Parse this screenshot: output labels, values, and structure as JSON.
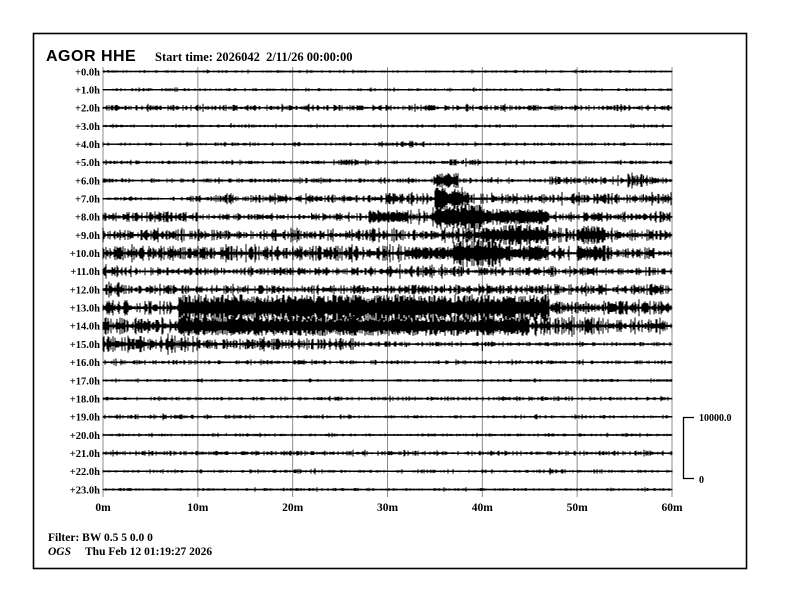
{
  "header": {
    "title": "AGOR HHE",
    "start_time": "Start time: 2026042  2/11/26 00:00:00"
  },
  "scale_bar": {
    "max": "10000.0",
    "min": "0"
  },
  "footer": {
    "filter": "Filter: BW 0.5 5 0.0 0",
    "agency": "OGS",
    "timestamp": "Thu Feb 12 01:19:27 2026"
  },
  "chart_data": {
    "type": "line",
    "subtype": "helicorder-seismogram",
    "station": "AGOR",
    "channel": "HHE",
    "title": "AGOR HHE",
    "start_time": "2026042 2/11/26 00:00:00",
    "minutes_per_line": 60,
    "num_lines": 24,
    "grid": true,
    "colors": {
      "trace": "#000000",
      "grid": "#8c8c8c",
      "background": "#ffffff"
    },
    "x_axis": {
      "ticks": [
        "0m",
        "10m",
        "20m",
        "30m",
        "40m",
        "50m",
        "60m"
      ],
      "range_minutes": [
        0,
        60
      ]
    },
    "y_axis": {
      "labels": [
        "+0.0h",
        "+1.0h",
        "+2.0h",
        "+3.0h",
        "+4.0h",
        "+5.0h",
        "+6.0h",
        "+7.0h",
        "+8.0h",
        "+9.0h",
        "+10.0h",
        "+11.0h",
        "+12.0h",
        "+13.0h",
        "+14.0h",
        "+15.0h",
        "+16.0h",
        "+17.0h",
        "+18.0h",
        "+19.0h",
        "+20.0h",
        "+21.0h",
        "+22.0h",
        "+23.0h"
      ]
    },
    "amplitude_scale": {
      "max": 10000.0,
      "min": 0
    },
    "envelope_units": "segments are [start_min, end_min, half_amplitude_px]; spikes are [minute, peak_px, negative=downward]",
    "traces": [
      {
        "hour": "+0.0h",
        "segments": [
          [
            0,
            60,
            0.7
          ]
        ],
        "spikes": [
          [
            0.5,
            1.4
          ],
          [
            1.5,
            1.2
          ],
          [
            2.5,
            1.3
          ],
          [
            20,
            1.0
          ],
          [
            33,
            1.0
          ]
        ]
      },
      {
        "hour": "+1.0h",
        "segments": [
          [
            0,
            60,
            0.8
          ]
        ],
        "spikes": [
          [
            5,
            1.4
          ],
          [
            9,
            1.2
          ],
          [
            14,
            1.3
          ],
          [
            19,
            1.2
          ],
          [
            30,
            1.5
          ],
          [
            36,
            1.3
          ],
          [
            44,
            1.5
          ],
          [
            52,
            1.3
          ],
          [
            58,
            1.2
          ]
        ]
      },
      {
        "hour": "+2.0h",
        "segments": [
          [
            0,
            60,
            1.6
          ]
        ],
        "spikes": [
          [
            50,
            2.2
          ]
        ]
      },
      {
        "hour": "+3.0h",
        "segments": [
          [
            0,
            60,
            0.8
          ]
        ],
        "spikes": [
          [
            13.5,
            3.0
          ],
          [
            28,
            1.2
          ],
          [
            45,
            1.1
          ]
        ]
      },
      {
        "hour": "+4.0h",
        "segments": [
          [
            0,
            60,
            0.9
          ],
          [
            29,
            34,
            1.8
          ]
        ],
        "spikes": [
          [
            13,
            1.5
          ],
          [
            33,
            2.2
          ],
          [
            47,
            1.3
          ],
          [
            56,
            1.5
          ]
        ]
      },
      {
        "hour": "+5.0h",
        "segments": [
          [
            0,
            60,
            1.0
          ],
          [
            24,
            28,
            1.7
          ],
          [
            36,
            40,
            1.7
          ]
        ],
        "spikes": [
          [
            26,
            2.5
          ],
          [
            38,
            2.5
          ],
          [
            43,
            2.0
          ],
          [
            55,
            1.5
          ]
        ]
      },
      {
        "hour": "+6.0h",
        "segments": [
          [
            0,
            60,
            1.2
          ],
          [
            34.8,
            37.5,
            5.5
          ],
          [
            47,
            55,
            2.2
          ],
          [
            55.3,
            57.5,
            4.0
          ],
          [
            57.5,
            60,
            2.0
          ]
        ],
        "spikes": [
          [
            2,
            2.5
          ],
          [
            11,
            2.0
          ],
          [
            24,
            1.8
          ],
          [
            40,
            4.0
          ],
          [
            41,
            3.5
          ],
          [
            45,
            2.5
          ],
          [
            57,
            5.0
          ]
        ]
      },
      {
        "hour": "+7.0h",
        "segments": [
          [
            0,
            9,
            1.0
          ],
          [
            9,
            30,
            2.2
          ],
          [
            30,
            35,
            2.8
          ],
          [
            35,
            38,
            8.5
          ],
          [
            38,
            45,
            3.0
          ],
          [
            45,
            60,
            2.8
          ]
        ],
        "spikes": [
          [
            30.8,
            5.0
          ],
          [
            31.6,
            4.5
          ],
          [
            41,
            6.0
          ],
          [
            48,
            4.0
          ],
          [
            52.5,
            4.0
          ],
          [
            57,
            4.5
          ]
        ]
      },
      {
        "hour": "+8.0h",
        "segments": [
          [
            0,
            10,
            2.8
          ],
          [
            10,
            20,
            1.5
          ],
          [
            20,
            28,
            2.0
          ],
          [
            28,
            32,
            5.0
          ],
          [
            32,
            35,
            4.0
          ],
          [
            35,
            40,
            9.5
          ],
          [
            40,
            47,
            6.0
          ],
          [
            47,
            60,
            2.8
          ]
        ],
        "spikes": [
          [
            22,
            4.0
          ],
          [
            29,
            7.0
          ],
          [
            31,
            7.0
          ],
          [
            44,
            7.0
          ],
          [
            55,
            4.0
          ]
        ]
      },
      {
        "hour": "+9.0h",
        "segments": [
          [
            0,
            35,
            3.0
          ],
          [
            35,
            40,
            4.5
          ],
          [
            40,
            42,
            6.0
          ],
          [
            42,
            47,
            8.0
          ],
          [
            47,
            50,
            4.0
          ],
          [
            50,
            53,
            7.0
          ],
          [
            53,
            60,
            3.0
          ]
        ],
        "spikes": [
          [
            13,
            4.5
          ],
          [
            26,
            4.5
          ],
          [
            36,
            5.5
          ],
          [
            51,
            7.5
          ]
        ]
      },
      {
        "hour": "+10.0h",
        "segments": [
          [
            0,
            32,
            3.8
          ],
          [
            32,
            37,
            5.0
          ],
          [
            37,
            42,
            10.5
          ],
          [
            42,
            47,
            6.0
          ],
          [
            47,
            50,
            3.0
          ],
          [
            50,
            53,
            6.0
          ],
          [
            53,
            60,
            3.0
          ]
        ],
        "spikes": [
          [
            5,
            5.0
          ],
          [
            20,
            5.0
          ],
          [
            33,
            6.0
          ],
          [
            44,
            8.0
          ],
          [
            58,
            4.0
          ]
        ]
      },
      {
        "hour": "+11.0h",
        "segments": [
          [
            0,
            3,
            3.0
          ],
          [
            3,
            30,
            2.1
          ],
          [
            30,
            42,
            3.0
          ],
          [
            42,
            47,
            2.5
          ],
          [
            47,
            60,
            2.2
          ]
        ],
        "spikes": [
          [
            1,
            4.0
          ],
          [
            12.5,
            3.5
          ],
          [
            21,
            3.5
          ],
          [
            31,
            3.5
          ],
          [
            38,
            4.0
          ],
          [
            45,
            3.5
          ],
          [
            52,
            3.0
          ]
        ]
      },
      {
        "hour": "+12.0h",
        "segments": [
          [
            0,
            2,
            4.0
          ],
          [
            2,
            47,
            2.4
          ],
          [
            47,
            60,
            2.8
          ]
        ],
        "spikes": [
          [
            2,
            5
          ],
          [
            6,
            4
          ],
          [
            9,
            4
          ],
          [
            12,
            4.5
          ],
          [
            15,
            4
          ],
          [
            18,
            4
          ],
          [
            21,
            4
          ],
          [
            24,
            4
          ],
          [
            27,
            4
          ],
          [
            30,
            4.5
          ],
          [
            33,
            5
          ],
          [
            36,
            5
          ],
          [
            40,
            4
          ],
          [
            43,
            4
          ],
          [
            45,
            4
          ],
          [
            50,
            3.5
          ],
          [
            55,
            3
          ]
        ]
      },
      {
        "hour": "+13.0h",
        "segments": [
          [
            0,
            3,
            4.5
          ],
          [
            3,
            8,
            3.5
          ],
          [
            8,
            47,
            10.0
          ],
          [
            47,
            60,
            3.5
          ]
        ],
        "spikes": [
          [
            49,
            5
          ],
          [
            53,
            5
          ],
          [
            57,
            5
          ]
        ]
      },
      {
        "hour": "+14.0h",
        "segments": [
          [
            0,
            8,
            4.5
          ],
          [
            8,
            45,
            7.5
          ],
          [
            45,
            52,
            4.5
          ],
          [
            52,
            60,
            3.5
          ]
        ],
        "spikes": [
          [
            30,
            9
          ],
          [
            35,
            9
          ],
          [
            42,
            8
          ]
        ]
      },
      {
        "hour": "+15.0h",
        "segments": [
          [
            0,
            10,
            4.5
          ],
          [
            10,
            27,
            3.0
          ],
          [
            27,
            40,
            1.4
          ],
          [
            40,
            60,
            1.1
          ]
        ],
        "spikes": [
          [
            5,
            -6
          ],
          [
            12,
            -5
          ],
          [
            15,
            -5
          ],
          [
            18,
            -6
          ],
          [
            22,
            -5
          ],
          [
            25,
            -4
          ],
          [
            32,
            -3
          ],
          [
            40,
            -7
          ],
          [
            47,
            -2
          ]
        ]
      },
      {
        "hour": "+16.0h",
        "segments": [
          [
            0,
            10,
            1.5
          ],
          [
            10,
            60,
            1.1
          ]
        ],
        "spikes": [
          [
            25,
            2
          ],
          [
            40,
            2
          ],
          [
            44,
            2
          ],
          [
            47,
            2
          ]
        ]
      },
      {
        "hour": "+17.0h",
        "segments": [
          [
            0,
            60,
            0.8
          ]
        ],
        "spikes": [
          [
            10,
            1.2
          ],
          [
            31,
            1.3
          ],
          [
            45,
            1.2
          ]
        ]
      },
      {
        "hour": "+18.0h",
        "segments": [
          [
            0,
            60,
            1.0
          ],
          [
            30,
            50,
            1.2
          ]
        ],
        "spikes": [
          [
            35,
            1.5
          ],
          [
            48,
            1.4
          ]
        ]
      },
      {
        "hour": "+19.0h",
        "segments": [
          [
            0,
            10,
            1.3
          ],
          [
            10,
            60,
            0.9
          ]
        ],
        "spikes": [
          [
            17,
            1.5
          ],
          [
            28,
            1.3
          ],
          [
            40,
            1.2
          ]
        ]
      },
      {
        "hour": "+20.0h",
        "segments": [
          [
            0,
            60,
            0.8
          ]
        ],
        "spikes": [
          [
            13,
            1.8
          ],
          [
            14,
            1.5
          ],
          [
            22,
            1.2
          ],
          [
            28,
            1.2
          ],
          [
            38,
            1.3
          ],
          [
            44,
            1.4
          ],
          [
            56,
            1.2
          ]
        ]
      },
      {
        "hour": "+21.0h",
        "segments": [
          [
            0,
            60,
            1.3
          ]
        ],
        "spikes": []
      },
      {
        "hour": "+22.0h",
        "segments": [
          [
            0,
            60,
            0.8
          ],
          [
            20,
            24,
            1.2
          ],
          [
            33,
            40,
            1.1
          ],
          [
            46,
            49,
            1.3
          ]
        ],
        "spikes": []
      },
      {
        "hour": "+23.0h",
        "segments": [
          [
            0,
            60,
            0.8
          ]
        ],
        "spikes": [
          [
            10,
            1.1
          ],
          [
            25,
            1.1
          ],
          [
            40,
            1.2
          ],
          [
            55,
            1.1
          ]
        ]
      }
    ]
  }
}
